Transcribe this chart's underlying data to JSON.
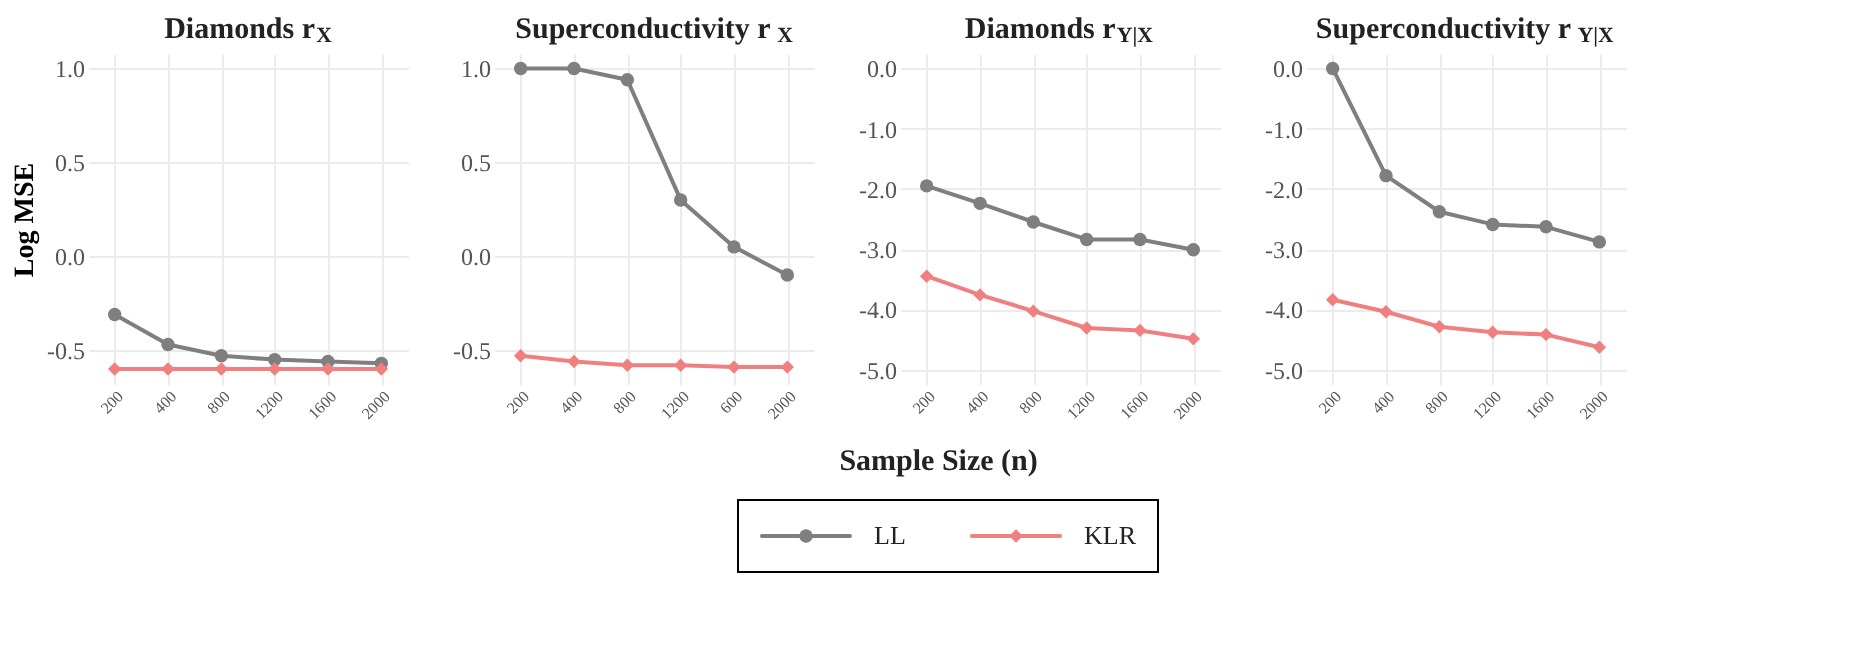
{
  "chart_data": [
    {
      "type": "line",
      "title": "Diamonds r$_{X}$",
      "ylabel": "Log MSE",
      "legend": "bottom",
      "grid": true,
      "categories": [
        "200",
        "400",
        "800",
        "1200",
        "1600",
        "2000"
      ],
      "ylim": [
        -0.68,
        1.077
      ],
      "yticks": [
        {
          "value": -0.5,
          "label": "-0.5"
        },
        {
          "value": 0,
          "label": "0.0"
        },
        {
          "value": 0.5,
          "label": "0.5"
        },
        {
          "value": 1,
          "label": "1.0"
        }
      ],
      "series": [
        {
          "name": "LL",
          "color": "#7f7f7f",
          "marker": "circle",
          "values": [
            -0.31,
            -0.47,
            -0.53,
            -0.55,
            -0.56,
            -0.57
          ]
        },
        {
          "name": "KLR",
          "color": "#f08080",
          "marker": "diamond",
          "values": [
            -0.6,
            -0.6,
            -0.6,
            -0.6,
            -0.6,
            -0.6
          ]
        }
      ]
    },
    {
      "type": "line",
      "title": "Superconductivity r$_{X}$",
      "xlabel": "Sample Size (n)",
      "grid": true,
      "categories": [
        "200",
        "400",
        "800",
        "1200",
        "600",
        "2000"
      ],
      "ylim": [
        -0.68,
        1.077
      ],
      "yticks": [
        {
          "value": -0.5,
          "label": "-0.5"
        },
        {
          "value": 0,
          "label": "0.0"
        },
        {
          "value": 0.5,
          "label": "0.5"
        },
        {
          "value": 1,
          "label": "1.0"
        }
      ],
      "series": [
        {
          "name": "LL",
          "color": "#7f7f7f",
          "marker": "circle",
          "values": [
            1.0,
            1.0,
            0.94,
            0.3,
            0.05,
            -0.1
          ]
        },
        {
          "name": "KLR",
          "color": "#f08080",
          "marker": "diamond",
          "values": [
            -0.53,
            -0.56,
            -0.58,
            -0.58,
            -0.59,
            -0.59
          ]
        }
      ]
    },
    {
      "type": "line",
      "title": "Diamonds r$_{Y|X}$",
      "grid": true,
      "categories": [
        "200",
        "400",
        "800",
        "1200",
        "1600",
        "2000"
      ],
      "ylim": [
        -5.24,
        0.24
      ],
      "yticks": [
        {
          "value": -5,
          "label": "-5.0"
        },
        {
          "value": -4,
          "label": "-4.0"
        },
        {
          "value": -3,
          "label": "-3.0"
        },
        {
          "value": -2,
          "label": "-2.0"
        },
        {
          "value": -1,
          "label": "-1.0"
        },
        {
          "value": 0,
          "label": "0.0"
        }
      ],
      "series": [
        {
          "name": "LL",
          "color": "#7f7f7f",
          "marker": "circle",
          "values": [
            -1.95,
            -2.24,
            -2.55,
            -2.84,
            -2.84,
            -3.01
          ]
        },
        {
          "name": "KLR",
          "color": "#f08080",
          "marker": "diamond",
          "values": [
            -3.45,
            -3.76,
            -4.03,
            -4.31,
            -4.35,
            -4.49
          ]
        }
      ]
    },
    {
      "type": "line",
      "title": "Superconductivity r$_{Y|X}$",
      "grid": true,
      "categories": [
        "200",
        "400",
        "800",
        "1200",
        "1600",
        "2000"
      ],
      "ylim": [
        -5.24,
        0.24
      ],
      "yticks": [
        {
          "value": -5,
          "label": "-5.0"
        },
        {
          "value": -4,
          "label": "-4.0"
        },
        {
          "value": -3,
          "label": "-3.0"
        },
        {
          "value": -2,
          "label": "-2.0"
        },
        {
          "value": -1,
          "label": "-1.0"
        },
        {
          "value": 0,
          "label": "0.0"
        }
      ],
      "series": [
        {
          "name": "LL",
          "color": "#7f7f7f",
          "marker": "circle",
          "values": [
            0.0,
            -1.78,
            -2.38,
            -2.59,
            -2.63,
            -2.88
          ]
        },
        {
          "name": "KLR",
          "color": "#f08080",
          "marker": "diamond",
          "values": [
            -3.84,
            -4.04,
            -4.29,
            -4.38,
            -4.42,
            -4.63
          ]
        }
      ]
    }
  ]
}
